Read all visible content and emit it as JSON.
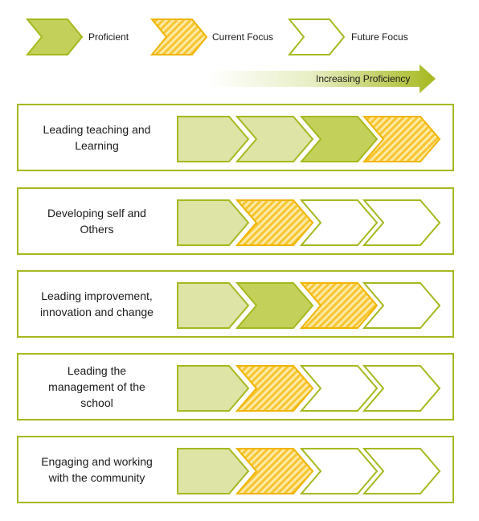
{
  "legend": {
    "proficient": "Proficient",
    "current_focus": "Current Focus",
    "future_focus": "Future Focus"
  },
  "progression_arrow": {
    "label": "Increasing Proficiency"
  },
  "colors": {
    "proficient_light": "#dde4a6",
    "proficient_dark": "#c3d15a",
    "current_focus": "#f7c530",
    "future_focus": "#ffffff",
    "border": "#a6b81e"
  },
  "rows": [
    {
      "label": "Leading teaching and\nLearning",
      "stages": [
        "proficient",
        "proficient",
        "proficient-dark",
        "current"
      ]
    },
    {
      "label": "Developing self and\nOthers",
      "stages": [
        "proficient",
        "current",
        "future",
        "future"
      ]
    },
    {
      "label": "Leading improvement,\ninnovation and change",
      "stages": [
        "proficient",
        "proficient-dark",
        "current",
        "future"
      ]
    },
    {
      "label": "Leading the\nmanagement of the\nschool",
      "stages": [
        "proficient",
        "current",
        "future",
        "future"
      ]
    },
    {
      "label": "Engaging and working\nwith the community",
      "stages": [
        "proficient",
        "current",
        "future",
        "future"
      ]
    }
  ]
}
